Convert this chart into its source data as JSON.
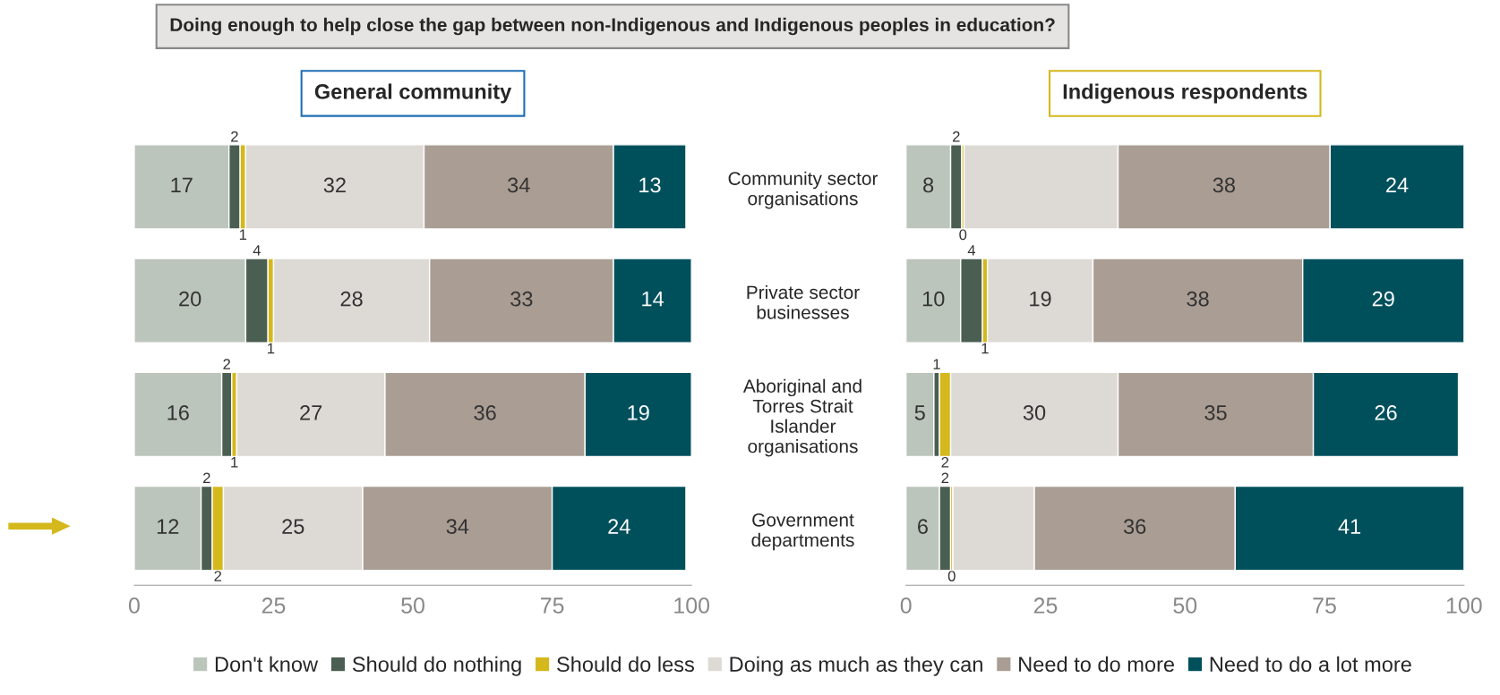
{
  "chart_data": [
    {
      "type": "bar",
      "orientation": "horizontal",
      "stacked": true,
      "title": "General community",
      "annotations": [
        "Doing enough to help close the gap between non-Indigenous and Indigenous peoples in education?"
      ],
      "categories": [
        "Community sector organisations",
        "Private sector businesses",
        "Aboriginal and Torres Strait Islander organisations",
        "Government departments"
      ],
      "series": [
        {
          "name": "Don't know",
          "color": "#bcc5bb",
          "values": [
            17,
            20,
            15.7,
            12
          ],
          "value_labels": [
            "17",
            "20",
            "16",
            "12"
          ]
        },
        {
          "name": "Should do nothing",
          "color": "#4a5e52",
          "values": [
            2,
            4,
            1.8,
            2
          ],
          "value_labels": [
            "2",
            "4",
            "2",
            "2"
          ]
        },
        {
          "name": "Should do less",
          "color": "#d4b81c",
          "values": [
            1,
            1,
            0.9,
            2
          ],
          "value_labels": [
            "1",
            "1",
            "1",
            "2"
          ]
        },
        {
          "name": "Doing as much as they can",
          "color": "#ddd9d5",
          "values": [
            32,
            28,
            26.6,
            25
          ],
          "value_labels": [
            "32",
            "28",
            "27",
            "25"
          ]
        },
        {
          "name": "Need to do more",
          "color": "#aa9d93",
          "values": [
            34,
            33,
            35.9,
            34
          ],
          "value_labels": [
            "34",
            "33",
            "36",
            "34"
          ]
        },
        {
          "name": "Need to do a lot more",
          "color": "#00505c",
          "values": [
            13,
            14,
            19.1,
            24
          ],
          "value_labels": [
            "13",
            "14",
            "19",
            "24"
          ]
        }
      ],
      "xlim": [
        0,
        100
      ],
      "xticks": [
        0,
        25,
        50,
        75,
        100
      ],
      "legend": "bottom",
      "grid": false
    },
    {
      "type": "bar",
      "orientation": "horizontal",
      "stacked": true,
      "title": "Indigenous respondents",
      "series": [
        {
          "color": "#bcc5bb",
          "values": [
            8,
            9.8,
            5,
            6
          ],
          "value_labels": [
            "8",
            "10",
            "5",
            "6"
          ]
        },
        {
          "color": "#4a5e52",
          "values": [
            2,
            3.9,
            1,
            2
          ],
          "value_labels": [
            "2",
            "4",
            "1",
            "2"
          ]
        },
        {
          "color": "#d4b81c",
          "values": [
            0.4,
            0.9,
            2,
            0.4
          ],
          "value_labels": [
            "0",
            "1",
            "2",
            "0"
          ]
        },
        {
          "color": "#ddd9d5",
          "values": [
            27.6,
            18.9,
            30,
            14.6
          ],
          "value_labels": [
            null,
            "19",
            "30",
            null
          ]
        },
        {
          "color": "#aa9d93",
          "values": [
            38,
            37.6,
            35,
            36
          ],
          "value_labels": [
            "38",
            "38",
            "35",
            "36"
          ]
        },
        {
          "color": "#00505c",
          "values": [
            24,
            28.9,
            26,
            41
          ],
          "value_labels": [
            "24",
            "29",
            "26",
            "41"
          ]
        }
      ],
      "xlim": [
        0,
        100
      ],
      "xticks": [
        0,
        25,
        50,
        75,
        100
      ],
      "tick_labels": "x",
      "grid": false
    }
  ]
}
